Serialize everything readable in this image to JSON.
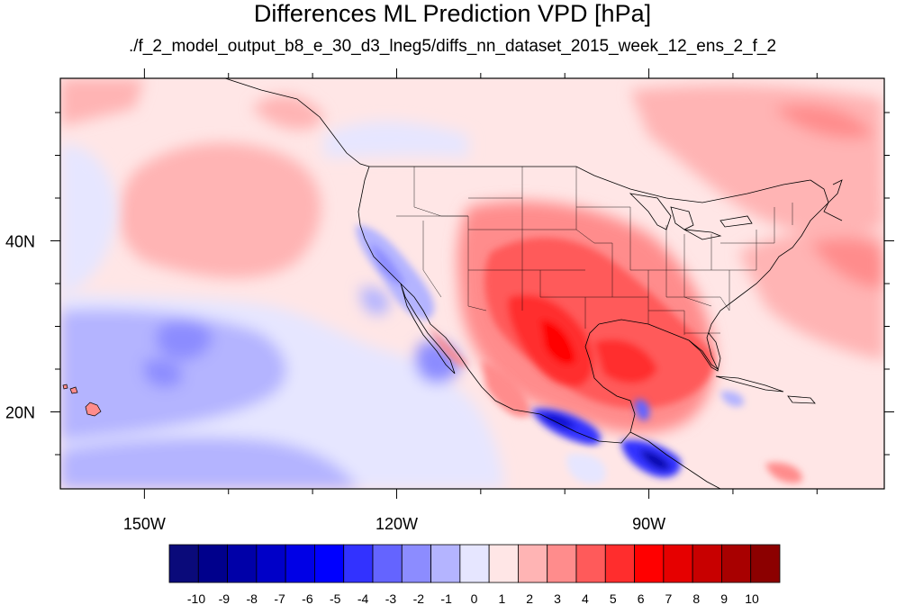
{
  "title": "Differences ML Prediction VPD [hPa]",
  "subtitle": "./f_2_model_output_b8_e_30_d3_lneg5/diffs_nn_dataset_2015_week_12_ens_2_f_2",
  "map": {
    "lon_range": [
      -160,
      -62
    ],
    "lat_range": [
      11,
      59
    ],
    "lon_ticks": [
      {
        "lon": -150,
        "label": "150W"
      },
      {
        "lon": -120,
        "label": "120W"
      },
      {
        "lon": -90,
        "label": "90W"
      }
    ],
    "lat_ticks": [
      {
        "lat": 40,
        "label": "40N"
      },
      {
        "lat": 20,
        "label": "20N"
      }
    ],
    "minor_lon_ticks": [
      -140,
      -130,
      -110,
      -100,
      -80,
      -70
    ],
    "minor_lat_ticks": [
      55,
      50,
      45,
      35,
      30,
      25,
      15
    ]
  },
  "colorbar": {
    "labels": [
      "-10",
      "-9",
      "-8",
      "-7",
      "-6",
      "-5",
      "-4",
      "-3",
      "-2",
      "-1",
      "0",
      "1",
      "2",
      "3",
      "4",
      "5",
      "6",
      "7",
      "8",
      "9",
      "10"
    ],
    "colors": [
      "#0a0a7a",
      "#00008c",
      "#0000a8",
      "#0000c8",
      "#0000e6",
      "#0000ff",
      "#3232ff",
      "#6464ff",
      "#8c8cff",
      "#b4b4ff",
      "#e6e6ff",
      "#ffe6e6",
      "#ffb4b4",
      "#ff8c8c",
      "#ff5a5a",
      "#ff2d2d",
      "#ff0000",
      "#e60000",
      "#c80000",
      "#a80000",
      "#8c0000"
    ]
  }
}
